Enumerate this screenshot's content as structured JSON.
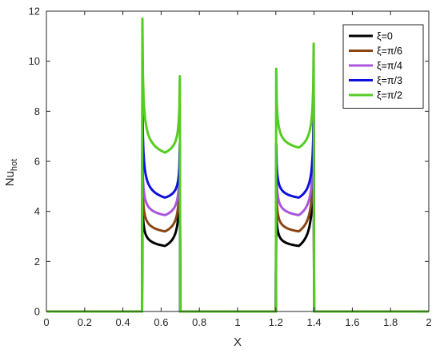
{
  "chart_data": {
    "type": "line",
    "xlabel": "X",
    "ylabel_main": "Nu",
    "ylabel_sub": "hot",
    "xlim": [
      0,
      2
    ],
    "ylim": [
      0,
      12
    ],
    "xticks": [
      "0",
      "0.2",
      "0.4",
      "0.6",
      "0.8",
      "1",
      "1.2",
      "1.4",
      "1.6",
      "1.8",
      "2"
    ],
    "yticks": [
      "0",
      "2",
      "4",
      "6",
      "8",
      "10",
      "12"
    ],
    "grid": false,
    "legend_position": "top-right",
    "heated_segments": [
      [
        0.5,
        0.7
      ],
      [
        1.2,
        1.4
      ]
    ],
    "series": [
      {
        "name": "ξ=0",
        "color": "#000000",
        "left": [
          4.7,
          2.62,
          6.1
        ],
        "right": [
          4.3,
          2.62,
          7.7
        ]
      },
      {
        "name": "ξ=π/6",
        "color": "#8B4513",
        "left": [
          5.6,
          3.2,
          6.3
        ],
        "right": [
          5.2,
          3.2,
          7.9
        ]
      },
      {
        "name": "ξ=π/4",
        "color": "#AA55DD",
        "left": [
          6.4,
          3.85,
          6.5
        ],
        "right": [
          6.0,
          3.85,
          8.2
        ]
      },
      {
        "name": "ξ=π/3",
        "color": "#1010DD",
        "left": [
          8.7,
          4.55,
          6.7
        ],
        "right": [
          6.7,
          4.55,
          8.6
        ]
      },
      {
        "name": "ξ=π/2",
        "color": "#55CC22",
        "left": [
          11.7,
          6.35,
          9.4
        ],
        "right": [
          9.7,
          6.55,
          10.7
        ]
      }
    ]
  }
}
